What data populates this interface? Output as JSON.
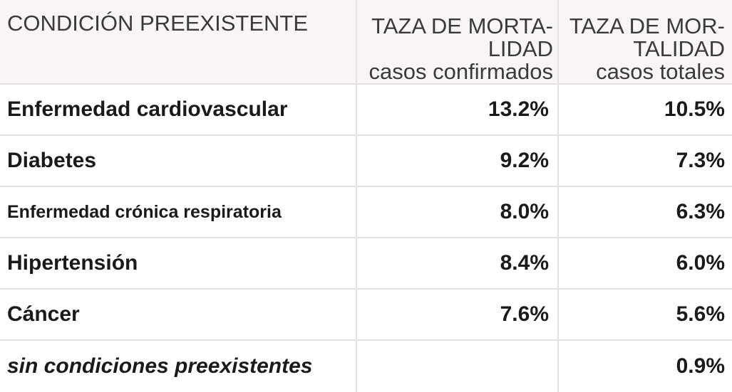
{
  "header": {
    "condition": "CONDICIÓN PREEXISTENTE",
    "col_confirmed": {
      "line1": "TAZA DE MORTA-",
      "line2": "LIDAD",
      "line3": "casos confirmados"
    },
    "col_total": {
      "line1": "TAZA DE MOR-",
      "line2": "TALIDAD",
      "line3": "casos totales"
    }
  },
  "rows": [
    {
      "condition": "Enfermedad cardiovascular",
      "confirmed": "13.2%",
      "total": "10.5%"
    },
    {
      "condition": "Diabetes",
      "confirmed": "9.2%",
      "total": "7.3%"
    },
    {
      "condition": "Enfermedad crónica respiratoria",
      "confirmed": "8.0%",
      "total": "6.3%"
    },
    {
      "condition": "Hipertensión",
      "confirmed": "8.4%",
      "total": "6.0%"
    },
    {
      "condition": "Cáncer",
      "confirmed": "7.6%",
      "total": "5.6%"
    },
    {
      "condition": "sin condiciones preexistentes",
      "confirmed": "",
      "total": "0.9%"
    }
  ]
}
